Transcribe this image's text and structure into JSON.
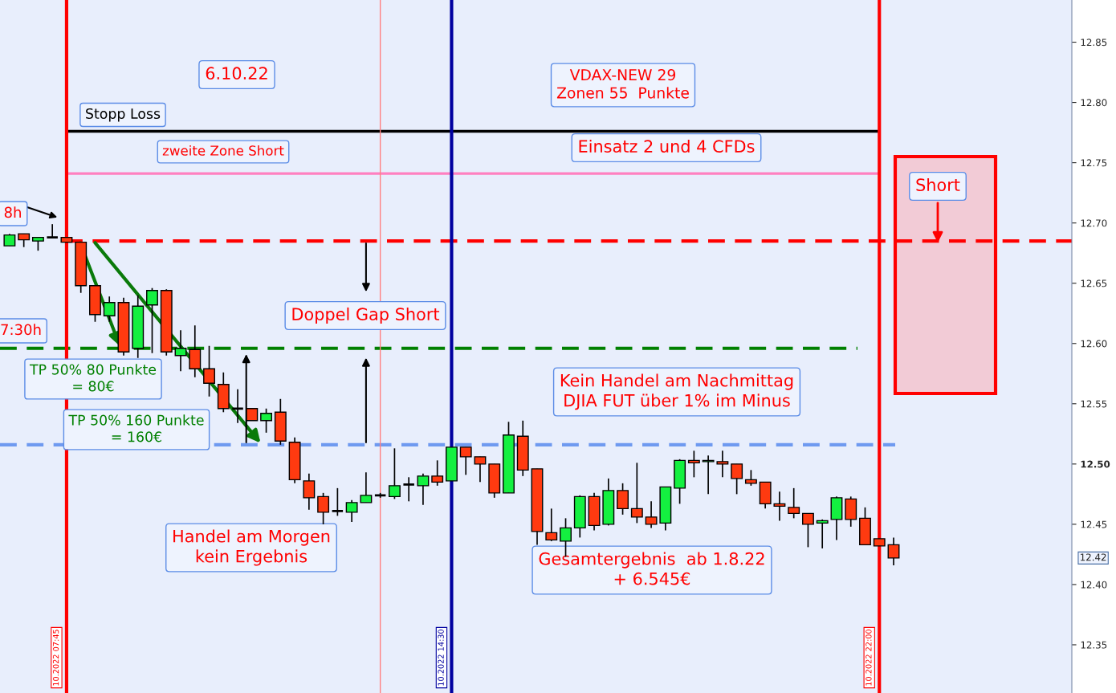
{
  "chart_data": {
    "type": "candlestick",
    "categories": [
      null,
      null,
      null,
      null,
      null,
      null,
      null,
      null,
      null,
      null,
      null,
      null,
      null,
      null,
      null,
      null,
      null,
      null,
      null,
      null,
      null,
      null,
      null,
      null,
      null,
      null,
      null,
      null,
      null,
      null,
      null,
      null,
      null,
      null,
      null,
      null,
      null,
      null,
      null,
      null,
      null,
      null,
      null,
      null,
      null,
      null,
      null,
      null,
      null,
      null,
      null,
      null,
      null,
      null,
      null,
      null,
      null,
      null,
      null,
      null,
      null,
      null,
      null,
      null,
      null,
      null,
      null,
      null,
      null,
      null,
      null,
      null,
      null,
      null,
      null
    ],
    "ohlc": [
      [
        12.681,
        12.691,
        12.681,
        12.69
      ],
      [
        12.691,
        12.691,
        12.68,
        12.686
      ],
      [
        12.685,
        12.688,
        12.677,
        12.688
      ],
      [
        12.688,
        12.699,
        12.688,
        12.688
      ],
      [
        12.688,
        12.688,
        12.684,
        12.684
      ],
      [
        12.684,
        12.684,
        12.642,
        12.648
      ],
      [
        12.648,
        12.648,
        12.618,
        12.624
      ],
      [
        12.623,
        12.639,
        12.618,
        12.634
      ],
      [
        12.634,
        12.638,
        12.59,
        12.593
      ],
      [
        12.596,
        12.64,
        12.588,
        12.631
      ],
      [
        12.632,
        12.646,
        12.592,
        12.644
      ],
      [
        12.644,
        12.645,
        12.59,
        12.593
      ],
      [
        12.59,
        12.611,
        12.577,
        12.596
      ],
      [
        12.595,
        12.615,
        12.572,
        12.579
      ],
      [
        12.579,
        12.598,
        12.556,
        12.567
      ],
      [
        12.566,
        12.576,
        12.543,
        12.546
      ],
      [
        12.546,
        12.562,
        12.534,
        12.546
      ],
      [
        12.546,
        12.546,
        12.536,
        12.536
      ],
      [
        12.536,
        12.546,
        12.526,
        12.542
      ],
      [
        12.543,
        12.554,
        12.516,
        12.519
      ],
      [
        12.518,
        12.522,
        12.484,
        12.487
      ],
      [
        12.486,
        12.492,
        12.462,
        12.472
      ],
      [
        12.473,
        12.476,
        12.45,
        12.46
      ],
      [
        12.461,
        12.48,
        12.457,
        12.461
      ],
      [
        12.46,
        12.47,
        12.452,
        12.468
      ],
      [
        12.468,
        12.493,
        12.468,
        12.474
      ],
      [
        12.474,
        12.476,
        12.472,
        12.474
      ],
      [
        12.473,
        12.513,
        12.471,
        12.482
      ],
      [
        12.483,
        12.489,
        12.469,
        12.483
      ],
      [
        12.482,
        12.492,
        12.466,
        12.49
      ],
      [
        12.49,
        12.503,
        12.482,
        12.485
      ],
      [
        12.486,
        12.514,
        12.486,
        12.514
      ],
      [
        12.514,
        12.514,
        12.491,
        12.506
      ],
      [
        12.506,
        12.506,
        12.485,
        12.5
      ],
      [
        12.5,
        12.5,
        12.472,
        12.476
      ],
      [
        12.476,
        12.535,
        12.476,
        12.524
      ],
      [
        12.523,
        12.536,
        12.49,
        12.495
      ],
      [
        12.496,
        12.496,
        12.433,
        12.444
      ],
      [
        12.443,
        12.463,
        12.436,
        12.437
      ],
      [
        12.436,
        12.455,
        12.423,
        12.447
      ],
      [
        12.447,
        12.474,
        12.439,
        12.473
      ],
      [
        12.473,
        12.476,
        12.445,
        12.449
      ],
      [
        12.45,
        12.488,
        12.449,
        12.478
      ],
      [
        12.478,
        12.484,
        12.458,
        12.463
      ],
      [
        12.463,
        12.501,
        12.451,
        12.456
      ],
      [
        12.456,
        12.469,
        12.447,
        12.45
      ],
      [
        12.451,
        12.481,
        12.445,
        12.481
      ],
      [
        12.48,
        12.504,
        12.467,
        12.503
      ],
      [
        12.503,
        12.511,
        12.489,
        12.501
      ],
      [
        12.502,
        12.507,
        12.475,
        12.503
      ],
      [
        12.502,
        12.511,
        12.489,
        12.5
      ],
      [
        12.5,
        12.5,
        12.475,
        12.488
      ],
      [
        12.487,
        12.495,
        12.482,
        12.484
      ],
      [
        12.485,
        12.485,
        12.463,
        12.467
      ],
      [
        12.467,
        12.477,
        12.453,
        12.465
      ],
      [
        12.464,
        12.48,
        12.455,
        12.459
      ],
      [
        12.459,
        12.459,
        12.431,
        12.45
      ],
      [
        12.451,
        12.454,
        12.43,
        12.453
      ],
      [
        12.454,
        12.473,
        12.437,
        12.472
      ],
      [
        12.471,
        12.473,
        12.448,
        12.454
      ],
      [
        12.455,
        12.464,
        12.433,
        12.433
      ],
      [
        12.438,
        12.438,
        12.432,
        12.432
      ],
      [
        12.433,
        12.439,
        12.416,
        12.422
      ],
      null,
      null,
      null,
      null,
      null,
      null,
      null,
      null,
      null,
      null,
      null,
      null
    ],
    "colors": [
      "#14f040",
      "#ff3a10",
      "#14f040",
      "#000000",
      "#ff3a10",
      "#ff3a10",
      "#ff3a10",
      "#14f040",
      "#ff3a10",
      "#14f040",
      "#14f040",
      "#ff3a10",
      "#14f040",
      "#ff3a10",
      "#ff3a10",
      "#ff3a10",
      "#000000",
      "#ff3a10",
      "#14f040",
      "#ff3a10",
      "#ff3a10",
      "#ff3a10",
      "#ff3a10",
      "#000000",
      "#14f040",
      "#14f040",
      "#000000",
      "#14f040",
      "#000000",
      "#14f040",
      "#ff3a10",
      "#14f040",
      "#ff3a10",
      "#ff3a10",
      "#ff3a10",
      "#14f040",
      "#ff3a10",
      "#ff3a10",
      "#ff3a10",
      "#14f040",
      "#14f040",
      "#ff3a10",
      "#14f040",
      "#ff3a10",
      "#ff3a10",
      "#ff3a10",
      "#14f040",
      "#14f040",
      "#ff3a10",
      "#14f040",
      "#ff3a10",
      "#ff3a10",
      "#ff3a10",
      "#ff3a10",
      "#ff3a10",
      "#ff3a10",
      "#ff3a10",
      "#14f040",
      "#14f040",
      "#ff3a10",
      "#ff3a10",
      "#ff3a10",
      "#ff3a10",
      null,
      null,
      null,
      null,
      null,
      null,
      null,
      null,
      null,
      null,
      null,
      null
    ],
    "ylim": [
      12.31,
      12.885
    ],
    "yticks": [
      12.35,
      {
        "value": 12.4,
        "label": "12.40"
      },
      12.45,
      {
        "value": 12.5,
        "label": "12.50"
      },
      12.55,
      {
        "value": 12.6,
        "label": "12.60"
      },
      12.65,
      {
        "value": 12.7,
        "label": "12.70"
      },
      12.75,
      {
        "value": 12.8,
        "label": "12.80"
      },
      12.85
    ],
    "tick_labels": "y",
    "ref_lines": [
      {
        "axis": "y",
        "value": 12.776,
        "label": "Stopp Loss",
        "color": "#000000",
        "line_style": "solid"
      },
      {
        "axis": "y",
        "value": 12.741,
        "label": "zweite Zone Short",
        "color": "#ff80c0",
        "line_style": "solid"
      },
      {
        "axis": "y",
        "value": 12.685,
        "color": "#ff0000",
        "line_style": "dashed"
      },
      {
        "axis": "y",
        "value": 12.596,
        "color": "#008000",
        "line_style": "dashed"
      },
      {
        "axis": "y",
        "value": 12.516,
        "color": "#6f9af0",
        "line_style": "dashed"
      }
    ],
    "annotations": [
      "TP 50% 80 Punkte\n= 80€",
      "TP 50% 160 Punkte\n= 160€",
      "6.10.22",
      "VDAX-NEW 29\nZonen 55  Punkte",
      "Einsatz 2 und 4 CFDs",
      "Short",
      "Doppel Gap Short",
      "Kein Handel am Nachmittag\nDJIA FUT über 1% im Minus",
      "Handel am Morgen\nkein Ergebnis",
      "Gesamtergebnis  ab 1.8.22\n+ 6.545€",
      "8h",
      "7:30h",
      "10.2022 07:45",
      "10.2022 14:30",
      "10.2022 22:00",
      "12.42"
    ]
  }
}
